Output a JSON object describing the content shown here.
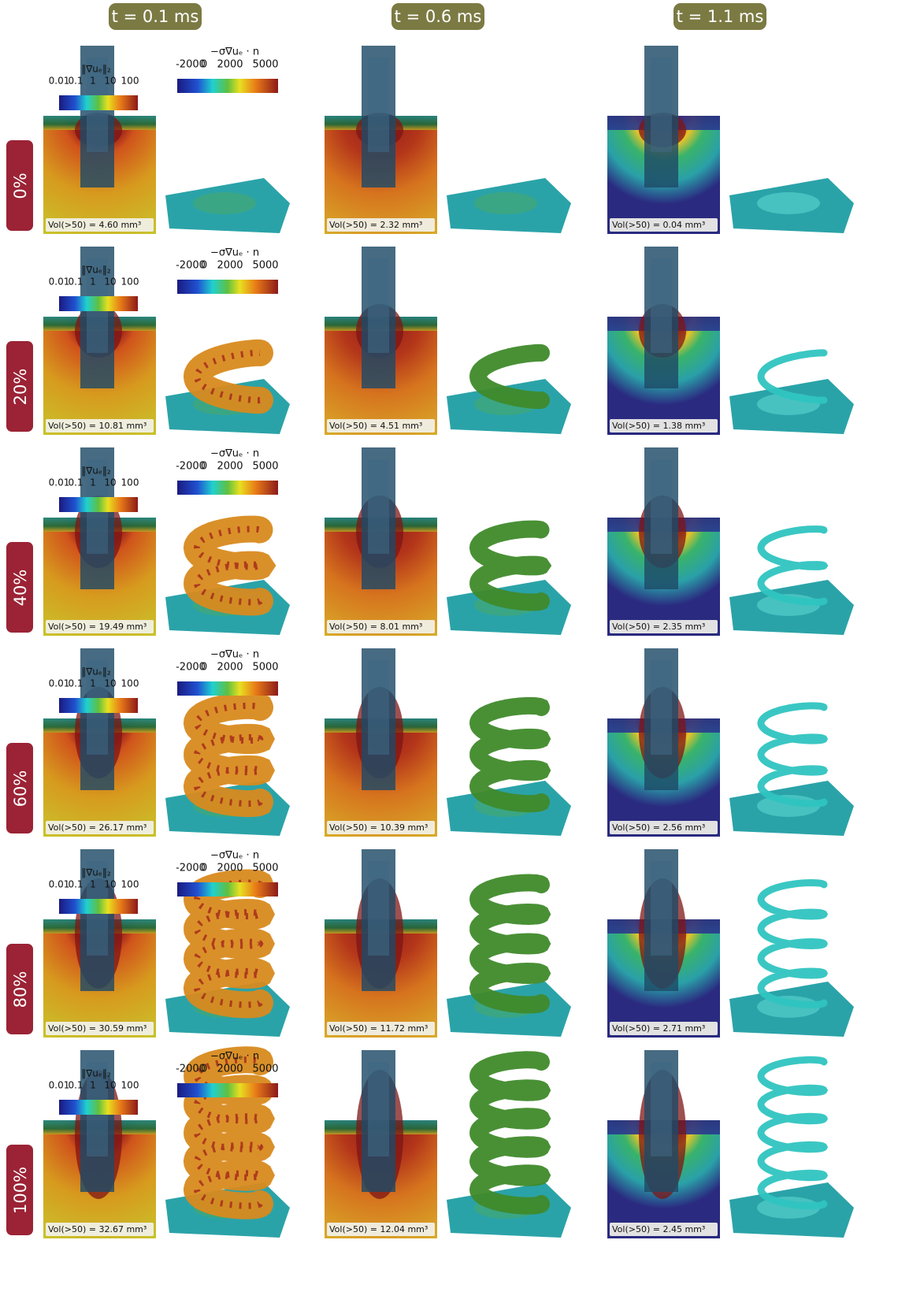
{
  "columns": [
    "t = 0.1 ms",
    "t = 0.6 ms",
    "t = 1.1 ms"
  ],
  "legend": {
    "grad_norm": {
      "label": "‖∇uₑ‖₂",
      "ticks": [
        "0.01",
        "0.1",
        "1",
        "10",
        "100"
      ]
    },
    "current": {
      "label": "−σ∇uₑ · n",
      "ticks": [
        "-2000",
        "0",
        "2000",
        "5000"
      ]
    }
  },
  "rows": [
    {
      "label": "0%",
      "volumes": [
        "Vol(>50) =  4.60 mm³",
        "Vol(>50) =  2.32 mm³",
        "Vol(>50) =  0.04 mm³"
      ]
    },
    {
      "label": "20%",
      "volumes": [
        "Vol(>50) = 10.81 mm³",
        "Vol(>50) =  4.51 mm³",
        "Vol(>50) =  1.38 mm³"
      ]
    },
    {
      "label": "40%",
      "volumes": [
        "Vol(>50) = 19.49 mm³",
        "Vol(>50) =  8.01 mm³",
        "Vol(>50) =  2.35 mm³"
      ]
    },
    {
      "label": "60%",
      "volumes": [
        "Vol(>50) = 26.17 mm³",
        "Vol(>50) = 10.39 mm³",
        "Vol(>50) =  2.56 mm³"
      ]
    },
    {
      "label": "80%",
      "volumes": [
        "Vol(>50) = 30.59 mm³",
        "Vol(>50) = 11.72 mm³",
        "Vol(>50) =  2.71 mm³"
      ]
    },
    {
      "label": "100%",
      "volumes": [
        "Vol(>50) = 32.67 mm³",
        "Vol(>50) = 12.04 mm³",
        "Vol(>50) =  2.45 mm³"
      ]
    }
  ]
}
